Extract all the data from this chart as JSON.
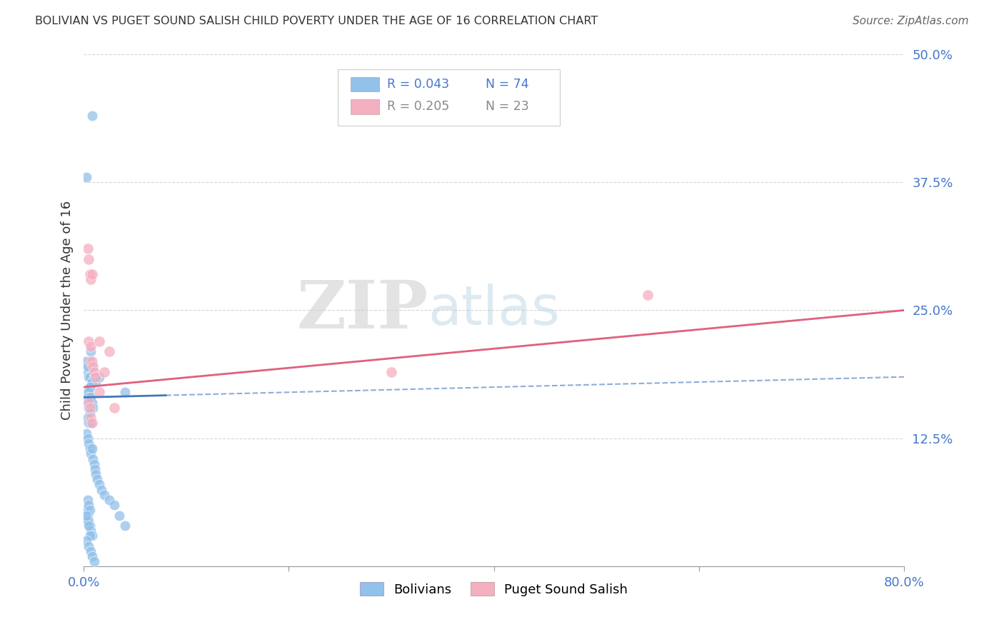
{
  "title": "BOLIVIAN VS PUGET SOUND SALISH CHILD POVERTY UNDER THE AGE OF 16 CORRELATION CHART",
  "source": "Source: ZipAtlas.com",
  "ylabel": "Child Poverty Under the Age of 16",
  "xlim": [
    0.0,
    0.8
  ],
  "ylim": [
    0.0,
    0.5
  ],
  "xticks": [
    0.0,
    0.2,
    0.4,
    0.6,
    0.8
  ],
  "xticklabels": [
    "0.0%",
    "",
    "",
    "",
    "80.0%"
  ],
  "yticks": [
    0.0,
    0.125,
    0.25,
    0.375,
    0.5
  ],
  "yticklabels": [
    "",
    "12.5%",
    "25.0%",
    "37.5%",
    "50.0%"
  ],
  "grid_color": "#cccccc",
  "background_color": "#ffffff",
  "watermark_zip": "ZIP",
  "watermark_atlas": "atlas",
  "bolivian_color": "#92c1e9",
  "salish_color": "#f4afc0",
  "bolivian_line_color": "#4477bb",
  "salish_line_color": "#e06080",
  "bolivian_text_color": "#4477cc",
  "salish_text_color": "#888888",
  "ytick_color": "#4477cc",
  "xtick_color": "#4477cc",
  "bolivians_x": [
    0.008,
    0.003,
    0.005,
    0.004,
    0.006,
    0.007,
    0.005,
    0.008,
    0.006,
    0.004,
    0.007,
    0.005,
    0.003,
    0.004,
    0.006,
    0.008,
    0.01,
    0.012,
    0.006,
    0.004,
    0.005,
    0.007,
    0.008,
    0.006,
    0.005,
    0.004,
    0.003,
    0.006,
    0.007,
    0.005,
    0.008,
    0.009,
    0.006,
    0.004,
    0.005,
    0.007,
    0.003,
    0.004,
    0.005,
    0.006,
    0.007,
    0.008,
    0.009,
    0.01,
    0.011,
    0.012,
    0.013,
    0.015,
    0.017,
    0.02,
    0.025,
    0.03,
    0.035,
    0.04,
    0.003,
    0.004,
    0.005,
    0.006,
    0.007,
    0.008,
    0.004,
    0.005,
    0.006,
    0.003,
    0.005,
    0.007,
    0.008,
    0.01,
    0.004,
    0.005,
    0.006,
    0.003,
    0.015,
    0.04
  ],
  "bolivians_y": [
    0.44,
    0.38,
    0.2,
    0.2,
    0.2,
    0.21,
    0.195,
    0.195,
    0.185,
    0.19,
    0.195,
    0.185,
    0.2,
    0.195,
    0.185,
    0.18,
    0.185,
    0.18,
    0.175,
    0.17,
    0.165,
    0.165,
    0.18,
    0.175,
    0.17,
    0.165,
    0.16,
    0.16,
    0.165,
    0.155,
    0.16,
    0.155,
    0.15,
    0.145,
    0.14,
    0.14,
    0.13,
    0.125,
    0.12,
    0.115,
    0.11,
    0.115,
    0.105,
    0.1,
    0.095,
    0.09,
    0.085,
    0.08,
    0.075,
    0.07,
    0.065,
    0.06,
    0.05,
    0.04,
    0.055,
    0.05,
    0.045,
    0.04,
    0.035,
    0.03,
    0.045,
    0.04,
    0.03,
    0.025,
    0.02,
    0.015,
    0.01,
    0.005,
    0.065,
    0.06,
    0.055,
    0.05,
    0.185,
    0.17
  ],
  "salish_x": [
    0.004,
    0.005,
    0.006,
    0.007,
    0.008,
    0.005,
    0.006,
    0.007,
    0.008,
    0.009,
    0.01,
    0.012,
    0.015,
    0.02,
    0.025,
    0.03,
    0.005,
    0.006,
    0.007,
    0.008,
    0.015,
    0.55,
    0.3
  ],
  "salish_y": [
    0.31,
    0.3,
    0.285,
    0.28,
    0.285,
    0.22,
    0.2,
    0.215,
    0.2,
    0.195,
    0.19,
    0.185,
    0.22,
    0.19,
    0.21,
    0.155,
    0.16,
    0.155,
    0.145,
    0.14,
    0.17,
    0.265,
    0.19
  ],
  "legend_bolivian_R": "R = 0.043",
  "legend_bolivian_N": "N = 74",
  "legend_salish_R": "R = 0.205",
  "legend_salish_N": "N = 23",
  "legend_box_color": "#dddddd"
}
